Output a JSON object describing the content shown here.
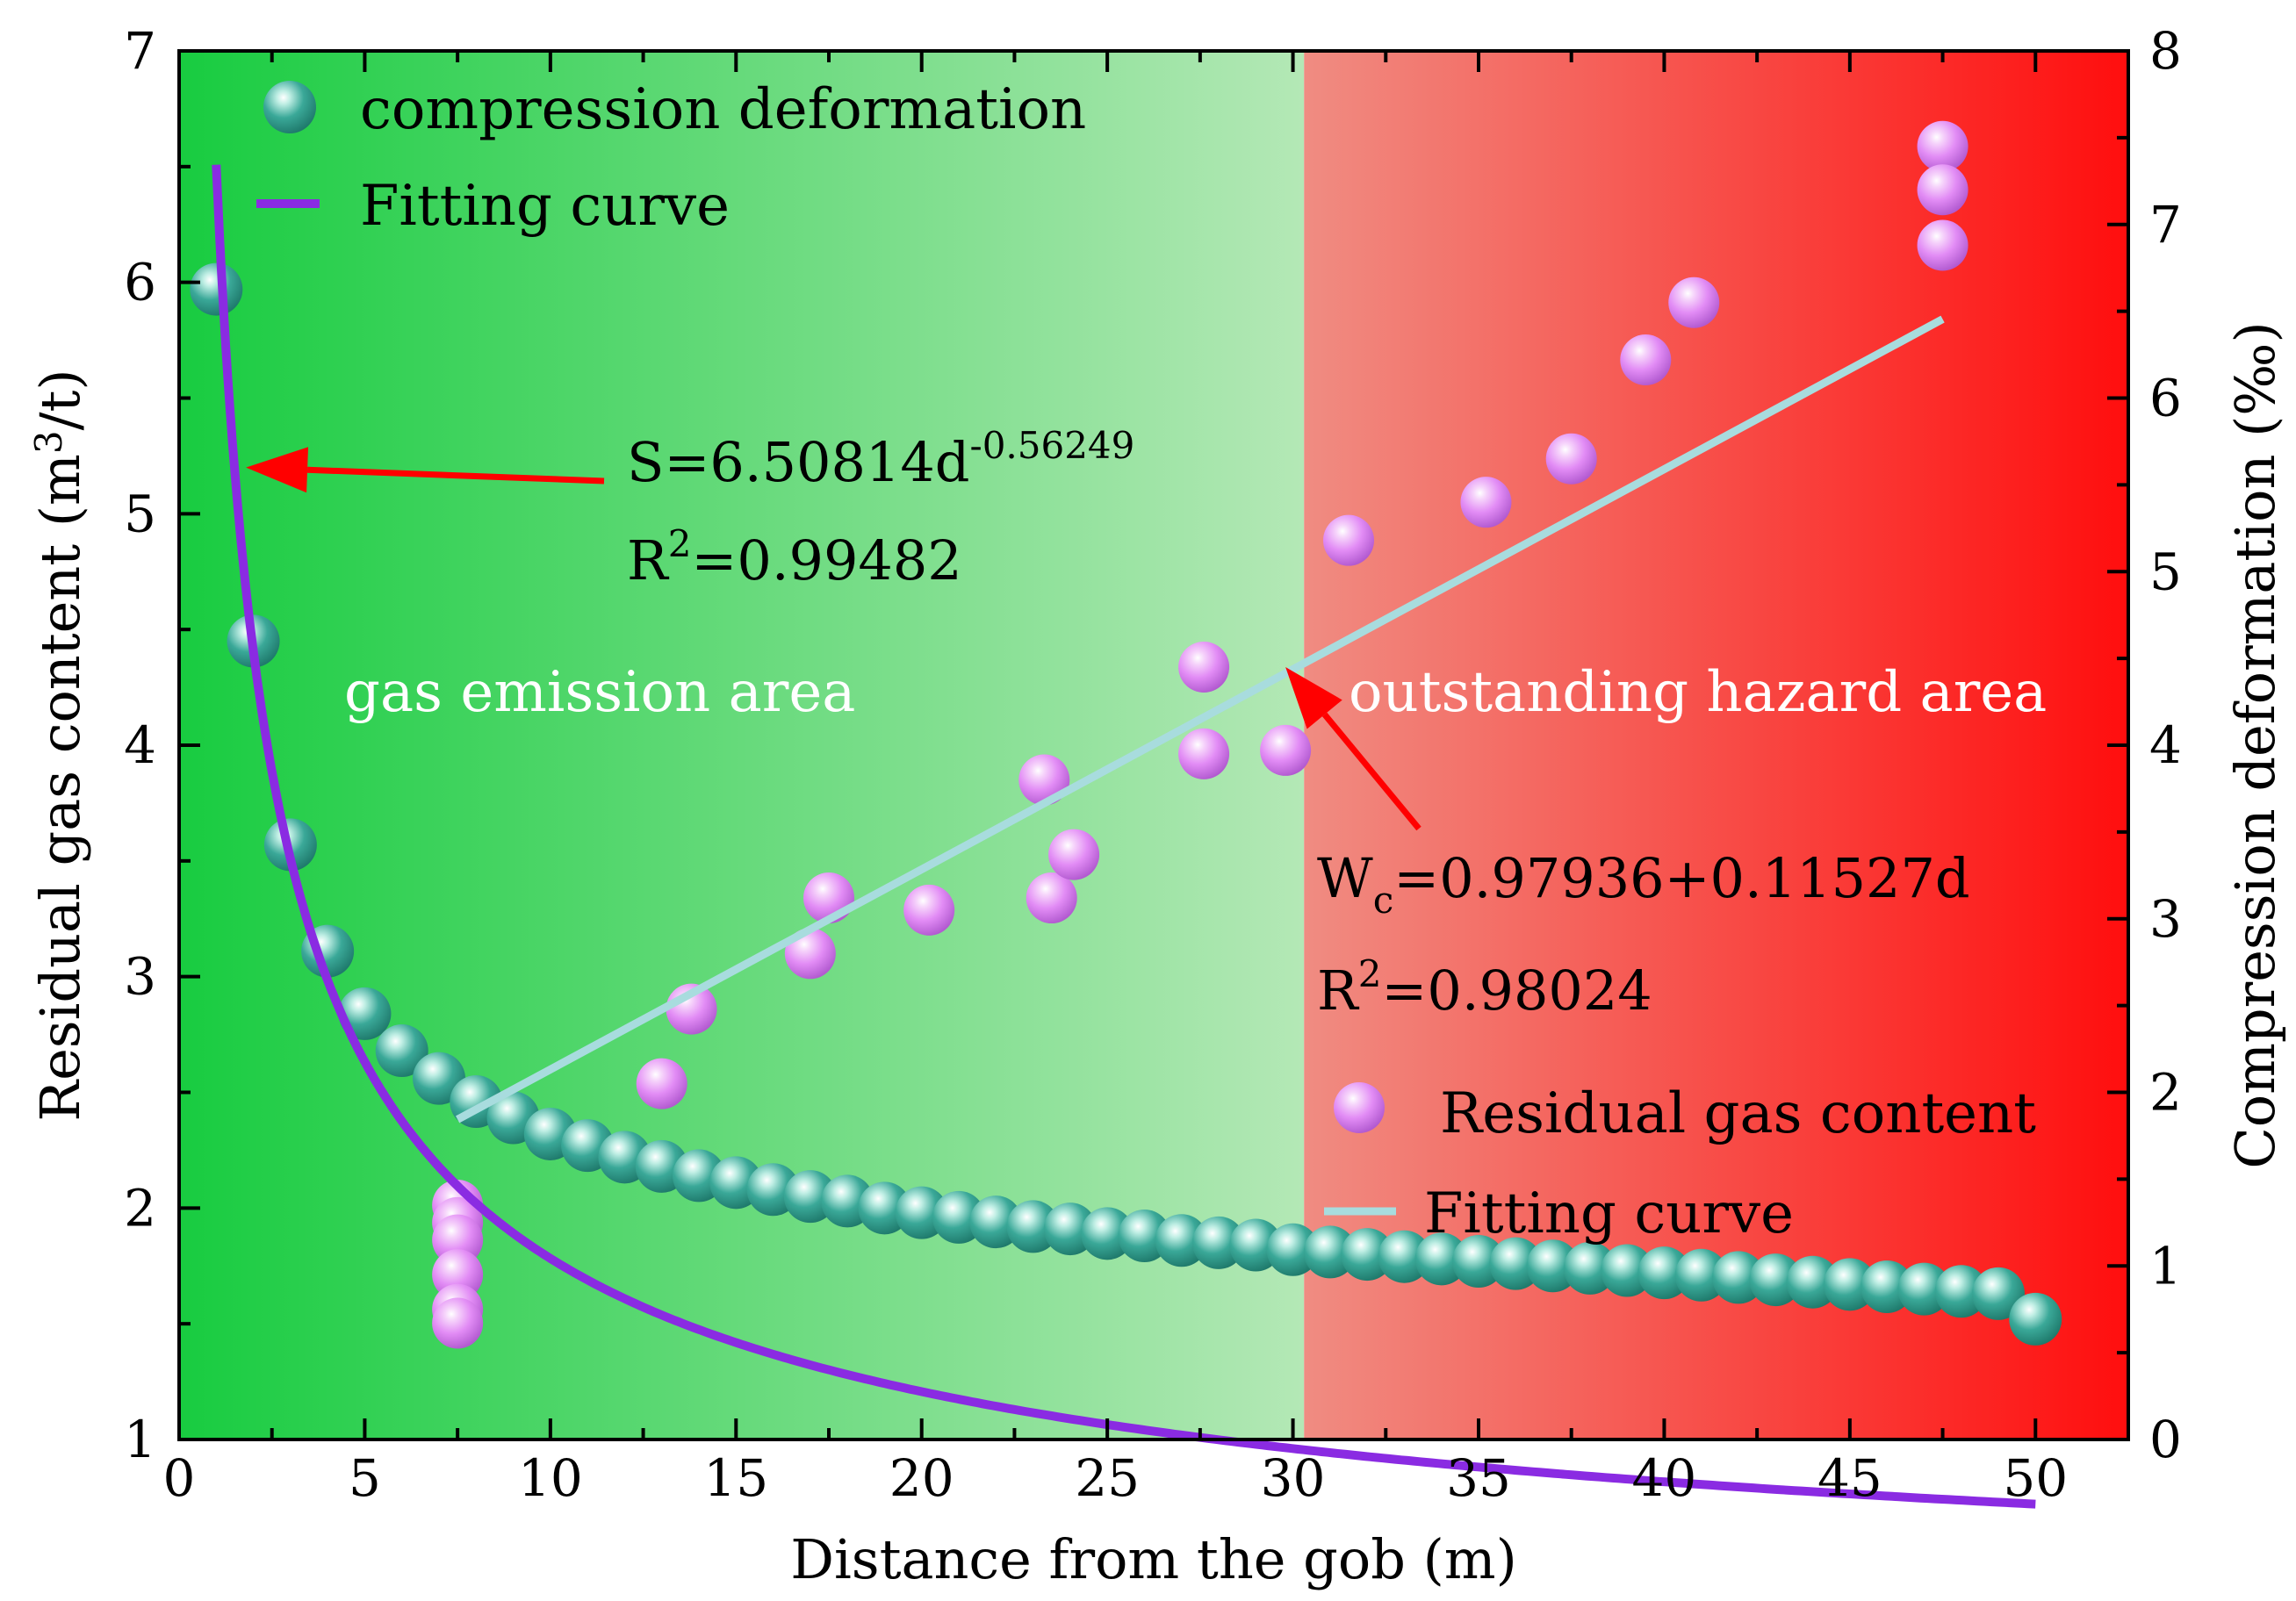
{
  "chart_data": {
    "type": "scatter",
    "xlabel": "Distance from the gob (m)",
    "ylabel": "Residual gas content (m³/t)",
    "ylabel_parts": {
      "pre": "Residual gas content (m",
      "sup": "3",
      "post": "/t)"
    },
    "y2label": "Compression deformation (‰)",
    "xlim": [
      0,
      52.5
    ],
    "ylim": [
      1,
      7
    ],
    "y2lim": [
      0,
      8
    ],
    "x_ticks": [
      "0",
      "5",
      "10",
      "15",
      "20",
      "25",
      "30",
      "35",
      "40",
      "45",
      "50"
    ],
    "y_ticks": [
      "1",
      "2",
      "3",
      "4",
      "5",
      "6",
      "7"
    ],
    "y2_ticks": [
      "0",
      "1",
      "2",
      "3",
      "4",
      "5",
      "6",
      "7",
      "8"
    ],
    "regions": [
      {
        "label": "gas emission area",
        "x_range": [
          0,
          30.3
        ],
        "color_start": "#18cc40",
        "color_end": "#b4e8b6"
      },
      {
        "label": "outstanding hazard area",
        "x_range": [
          30.3,
          52.5
        ],
        "color_start": "#f08c82",
        "color_end": "#ff0e0e"
      }
    ],
    "series": [
      {
        "name": "compression deformation",
        "axis": "left",
        "color": "#3aa898",
        "kind": "scatter",
        "fit_model": "power",
        "x_start": 1,
        "x_end": 50,
        "x_step": 1,
        "values": [
          5.97,
          4.45,
          3.57,
          3.11,
          2.84,
          2.68,
          2.56,
          2.46,
          2.39,
          2.32,
          2.27,
          2.22,
          2.18,
          2.14,
          2.11,
          2.08,
          2.05,
          2.03,
          2.0,
          1.98,
          1.96,
          1.94,
          1.92,
          1.91,
          1.89,
          1.88,
          1.86,
          1.85,
          1.84,
          1.82,
          1.81,
          1.8,
          1.79,
          1.78,
          1.77,
          1.76,
          1.75,
          1.74,
          1.73,
          1.72,
          1.71,
          1.7,
          1.69,
          1.68,
          1.67,
          1.66,
          1.65,
          1.64,
          1.63,
          1.52
        ]
      },
      {
        "name": "Residual gas content",
        "axis": "right",
        "color": "#e28cf5",
        "kind": "scatter",
        "points": [
          [
            7.5,
            1.35
          ],
          [
            7.5,
            1.25
          ],
          [
            7.5,
            1.15
          ],
          [
            7.5,
            0.95
          ],
          [
            7.5,
            0.75
          ],
          [
            7.5,
            0.67
          ],
          [
            13.0,
            2.05
          ],
          [
            13.8,
            2.48
          ],
          [
            17.0,
            2.8
          ],
          [
            17.5,
            3.12
          ],
          [
            20.2,
            3.05
          ],
          [
            23.3,
            3.8
          ],
          [
            23.5,
            3.12
          ],
          [
            24.1,
            3.37
          ],
          [
            27.6,
            4.45
          ],
          [
            27.6,
            3.95
          ],
          [
            29.8,
            3.97
          ],
          [
            31.5,
            5.18
          ],
          [
            35.2,
            5.4
          ],
          [
            37.5,
            5.65
          ],
          [
            39.5,
            6.22
          ],
          [
            40.8,
            6.55
          ],
          [
            47.5,
            7.45
          ],
          [
            47.5,
            7.2
          ],
          [
            47.5,
            6.88
          ]
        ]
      }
    ],
    "fits": [
      {
        "name": "Fitting curve",
        "axis": "left",
        "model": "power",
        "a": 6.50814,
        "b": -0.56249,
        "x_range": [
          1,
          50
        ],
        "color": "#8a2be2"
      },
      {
        "name": "Fitting curve",
        "axis": "right",
        "model": "linear",
        "intercept": 0.97936,
        "slope": 0.11527,
        "x_range": [
          7.5,
          47.5
        ],
        "color": "#a8dcde"
      }
    ],
    "legend_left": [
      {
        "label": "compression deformation",
        "marker": "circle",
        "color": "#3aa898"
      },
      {
        "label": "Fitting curve",
        "marker": "line",
        "color": "#8a2be2"
      }
    ],
    "legend_right": [
      {
        "label": "Residual gas content",
        "marker": "circle",
        "color": "#e28cf5"
      },
      {
        "label": "Fitting curve",
        "marker": "line",
        "color": "#a8dcde"
      }
    ],
    "annotations": [
      {
        "line1": {
          "pre": "S=6.50814d",
          "sup": "-0.56249"
        },
        "line2": {
          "pre": "R",
          "sup": "2",
          "post": "=0.99482"
        },
        "arrow_to": [
          1.8,
          5.2
        ],
        "color": "#ff0000"
      },
      {
        "line1": {
          "pre": "W",
          "sub": "c",
          "post": "=0.97936+0.11527d"
        },
        "line2": {
          "pre": "R",
          "sup": "2",
          "post": "=0.98024"
        },
        "arrow_to": [
          29.8,
          4.45
        ],
        "color": "#ff0000"
      }
    ]
  }
}
